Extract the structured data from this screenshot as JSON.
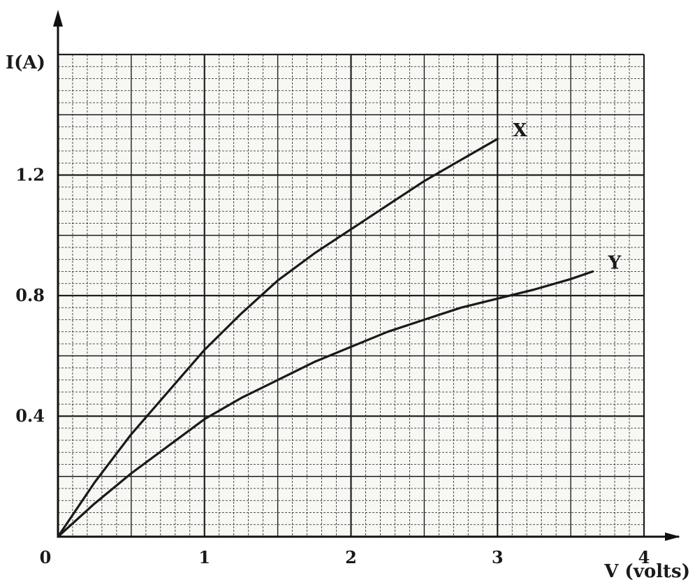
{
  "chart_data": {
    "type": "line",
    "title": "",
    "xlabel": "V (volts)",
    "ylabel": "I(A)",
    "xlim": [
      0,
      4
    ],
    "ylim": [
      0,
      1.6
    ],
    "x_ticks": [
      "0",
      "1",
      "2",
      "3",
      "4"
    ],
    "y_ticks": [
      "0.4",
      "0.8",
      "1.2"
    ],
    "grid": true,
    "legend": "none",
    "series": [
      {
        "name": "X",
        "x": [
          0,
          0.25,
          0.5,
          0.75,
          1.0,
          1.25,
          1.5,
          1.75,
          2.0,
          2.25,
          2.5,
          2.75,
          3.0
        ],
        "y": [
          0,
          0.18,
          0.34,
          0.48,
          0.62,
          0.74,
          0.85,
          0.94,
          1.02,
          1.1,
          1.18,
          1.25,
          1.32
        ],
        "color": "#1a1a1a"
      },
      {
        "name": "Y",
        "x": [
          0,
          0.25,
          0.5,
          0.75,
          1.0,
          1.25,
          1.5,
          1.75,
          2.0,
          2.25,
          2.5,
          2.75,
          3.0,
          3.25,
          3.5,
          3.65
        ],
        "y": [
          0,
          0.11,
          0.21,
          0.3,
          0.39,
          0.46,
          0.52,
          0.58,
          0.63,
          0.68,
          0.72,
          0.76,
          0.79,
          0.82,
          0.855,
          0.88
        ],
        "color": "#1a1a1a"
      }
    ]
  }
}
